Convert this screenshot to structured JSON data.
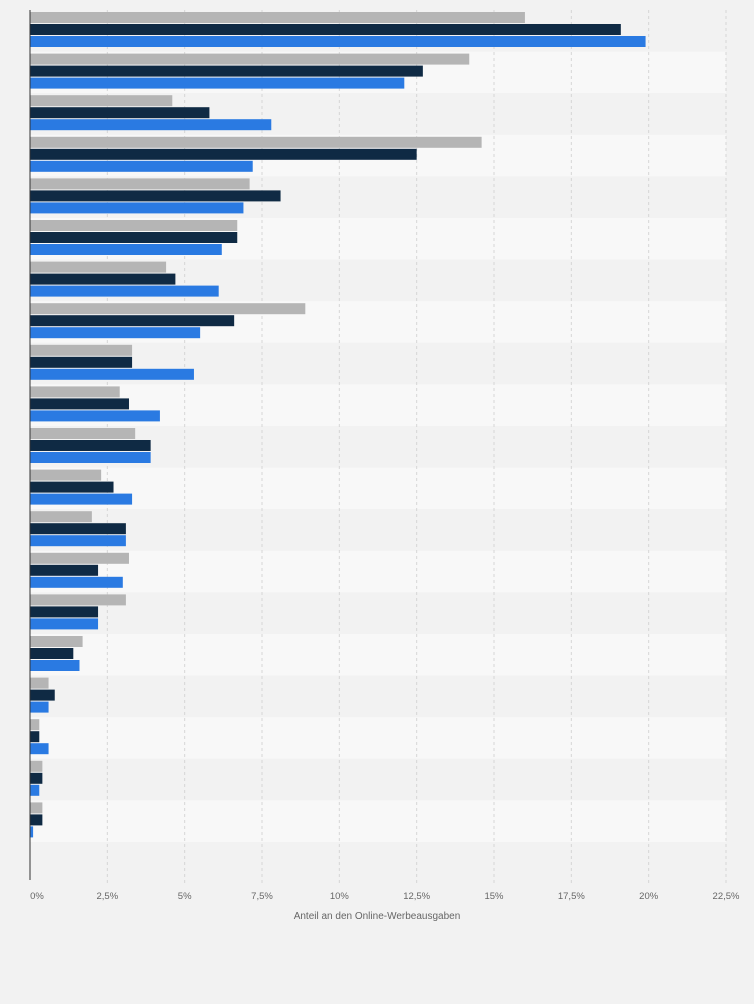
{
  "chart_data": {
    "type": "bar",
    "orientation": "horizontal",
    "xlabel": "Anteil an den Online-Werbeausgaben",
    "ylabel": "",
    "xlim": [
      0,
      22.5
    ],
    "x_ticks": [
      "0%",
      "2,5%",
      "5%",
      "7,5%",
      "10%",
      "12,5%",
      "15%",
      "17,5%",
      "20%",
      "22,5%"
    ],
    "grid": true,
    "legend": "none",
    "categories": [
      "",
      "",
      "",
      "",
      "",
      "",
      "",
      "",
      "",
      "",
      "",
      "",
      "",
      "",
      "",
      "",
      "",
      "",
      "",
      "",
      ""
    ],
    "series": [
      {
        "color": "#b5b5b5",
        "values": [
          16.0,
          14.2,
          4.6,
          14.6,
          7.1,
          6.7,
          4.4,
          8.9,
          3.3,
          2.9,
          3.4,
          2.3,
          2.0,
          3.2,
          3.1,
          1.7,
          0.6,
          0.3,
          0.4,
          0.4,
          0
        ]
      },
      {
        "color": "#0f2a44",
        "values": [
          19.1,
          12.7,
          5.8,
          12.5,
          8.1,
          6.7,
          4.7,
          6.6,
          3.3,
          3.2,
          3.9,
          2.7,
          3.1,
          2.2,
          2.2,
          1.4,
          0.8,
          0.3,
          0.4,
          0.4,
          0
        ]
      },
      {
        "color": "#2a7ae2",
        "values": [
          19.9,
          12.1,
          7.8,
          7.2,
          6.9,
          6.2,
          6.1,
          5.5,
          5.3,
          4.2,
          3.9,
          3.3,
          3.1,
          3.0,
          2.2,
          1.6,
          0.6,
          0.6,
          0.3,
          0.1,
          0
        ]
      }
    ]
  }
}
